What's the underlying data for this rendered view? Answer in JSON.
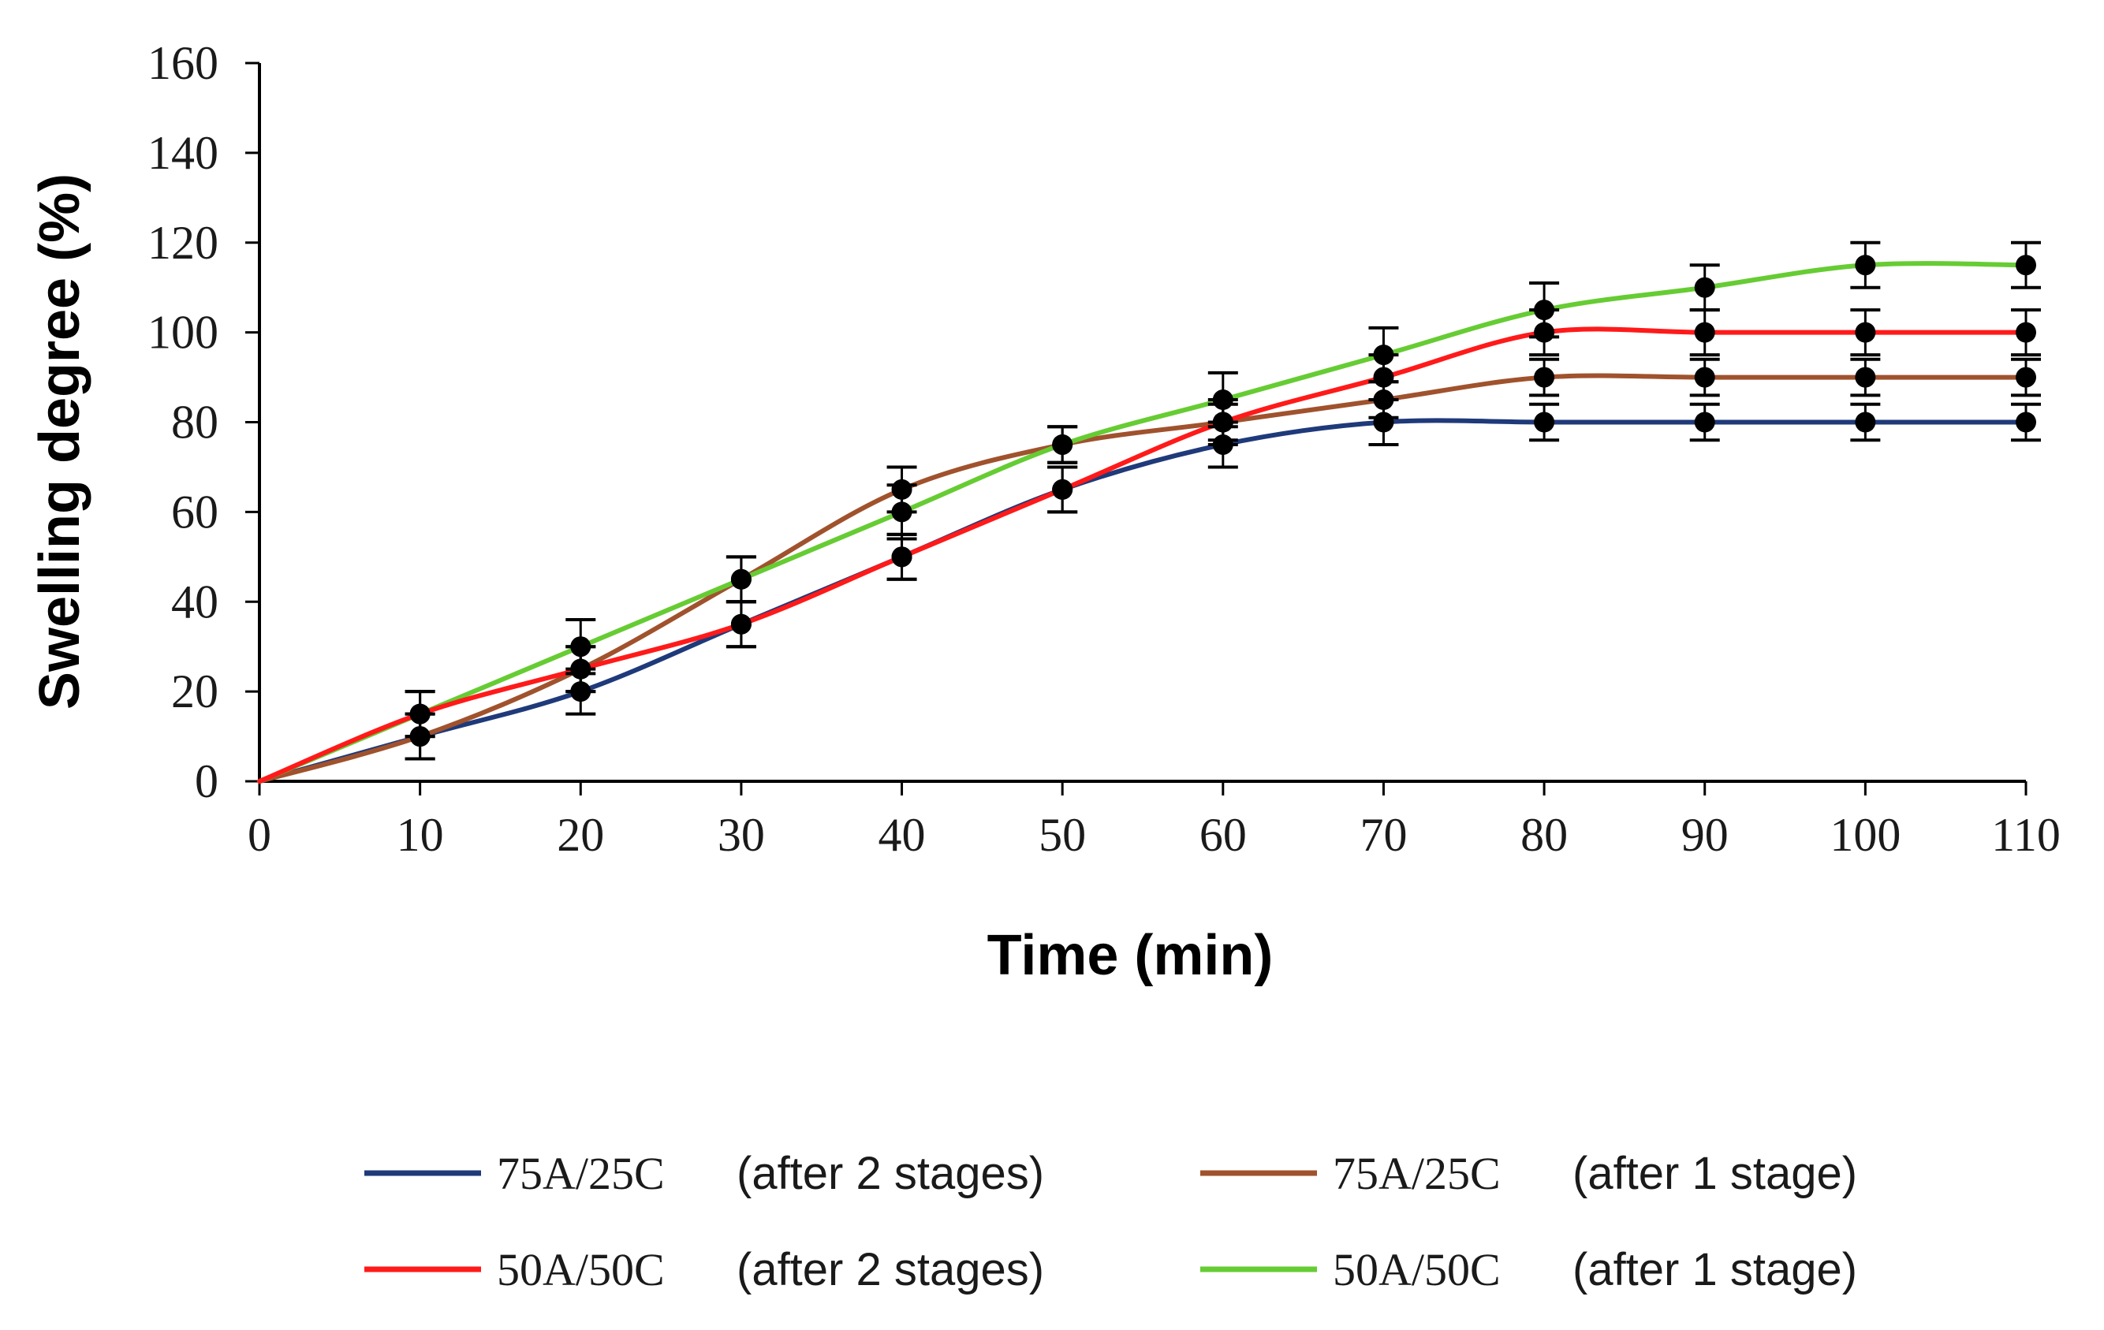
{
  "chart_data": {
    "type": "line",
    "title": "",
    "xlabel": "Time (min)",
    "ylabel": "Swelling degree (%)",
    "xlim": [
      0,
      110
    ],
    "ylim": [
      0,
      160
    ],
    "x_ticks": [
      0,
      10,
      20,
      30,
      40,
      50,
      60,
      70,
      80,
      90,
      100,
      110
    ],
    "y_ticks": [
      0,
      20,
      40,
      60,
      80,
      100,
      120,
      140,
      160
    ],
    "grid": false,
    "legend_position": "bottom",
    "x": [
      0,
      10,
      20,
      30,
      40,
      50,
      60,
      70,
      80,
      90,
      100,
      110
    ],
    "series": [
      {
        "name": "75A/25C",
        "note": "(after 2 stages)",
        "color": "#1f3a7a",
        "values": [
          0,
          10,
          20,
          35,
          50,
          65,
          75,
          80,
          80,
          80,
          80,
          80
        ],
        "error": [
          0,
          5,
          5,
          5,
          5,
          5,
          5,
          5,
          4,
          4,
          4,
          4
        ]
      },
      {
        "name": "75A/25C",
        "note": "(after 1 stage)",
        "color": "#a0522d",
        "values": [
          0,
          10,
          25,
          45,
          65,
          75,
          80,
          85,
          90,
          90,
          90,
          90
        ],
        "error": [
          0,
          5,
          5,
          5,
          5,
          4,
          4,
          4,
          4,
          4,
          4,
          4
        ]
      },
      {
        "name": "50A/50C",
        "note": "(after 2 stages)",
        "color": "#ff1a1a",
        "values": [
          0,
          15,
          25,
          35,
          50,
          65,
          80,
          90,
          100,
          100,
          100,
          100
        ],
        "error": [
          0,
          5,
          5,
          5,
          5,
          5,
          5,
          5,
          5,
          5,
          5,
          5
        ]
      },
      {
        "name": "50A/50C",
        "note": "(after 1 stage)",
        "color": "#66cc33",
        "values": [
          0,
          15,
          30,
          45,
          60,
          75,
          85,
          95,
          105,
          110,
          115,
          115
        ],
        "error": [
          0,
          5,
          6,
          5,
          6,
          4,
          6,
          6,
          6,
          5,
          5,
          5
        ]
      }
    ]
  }
}
